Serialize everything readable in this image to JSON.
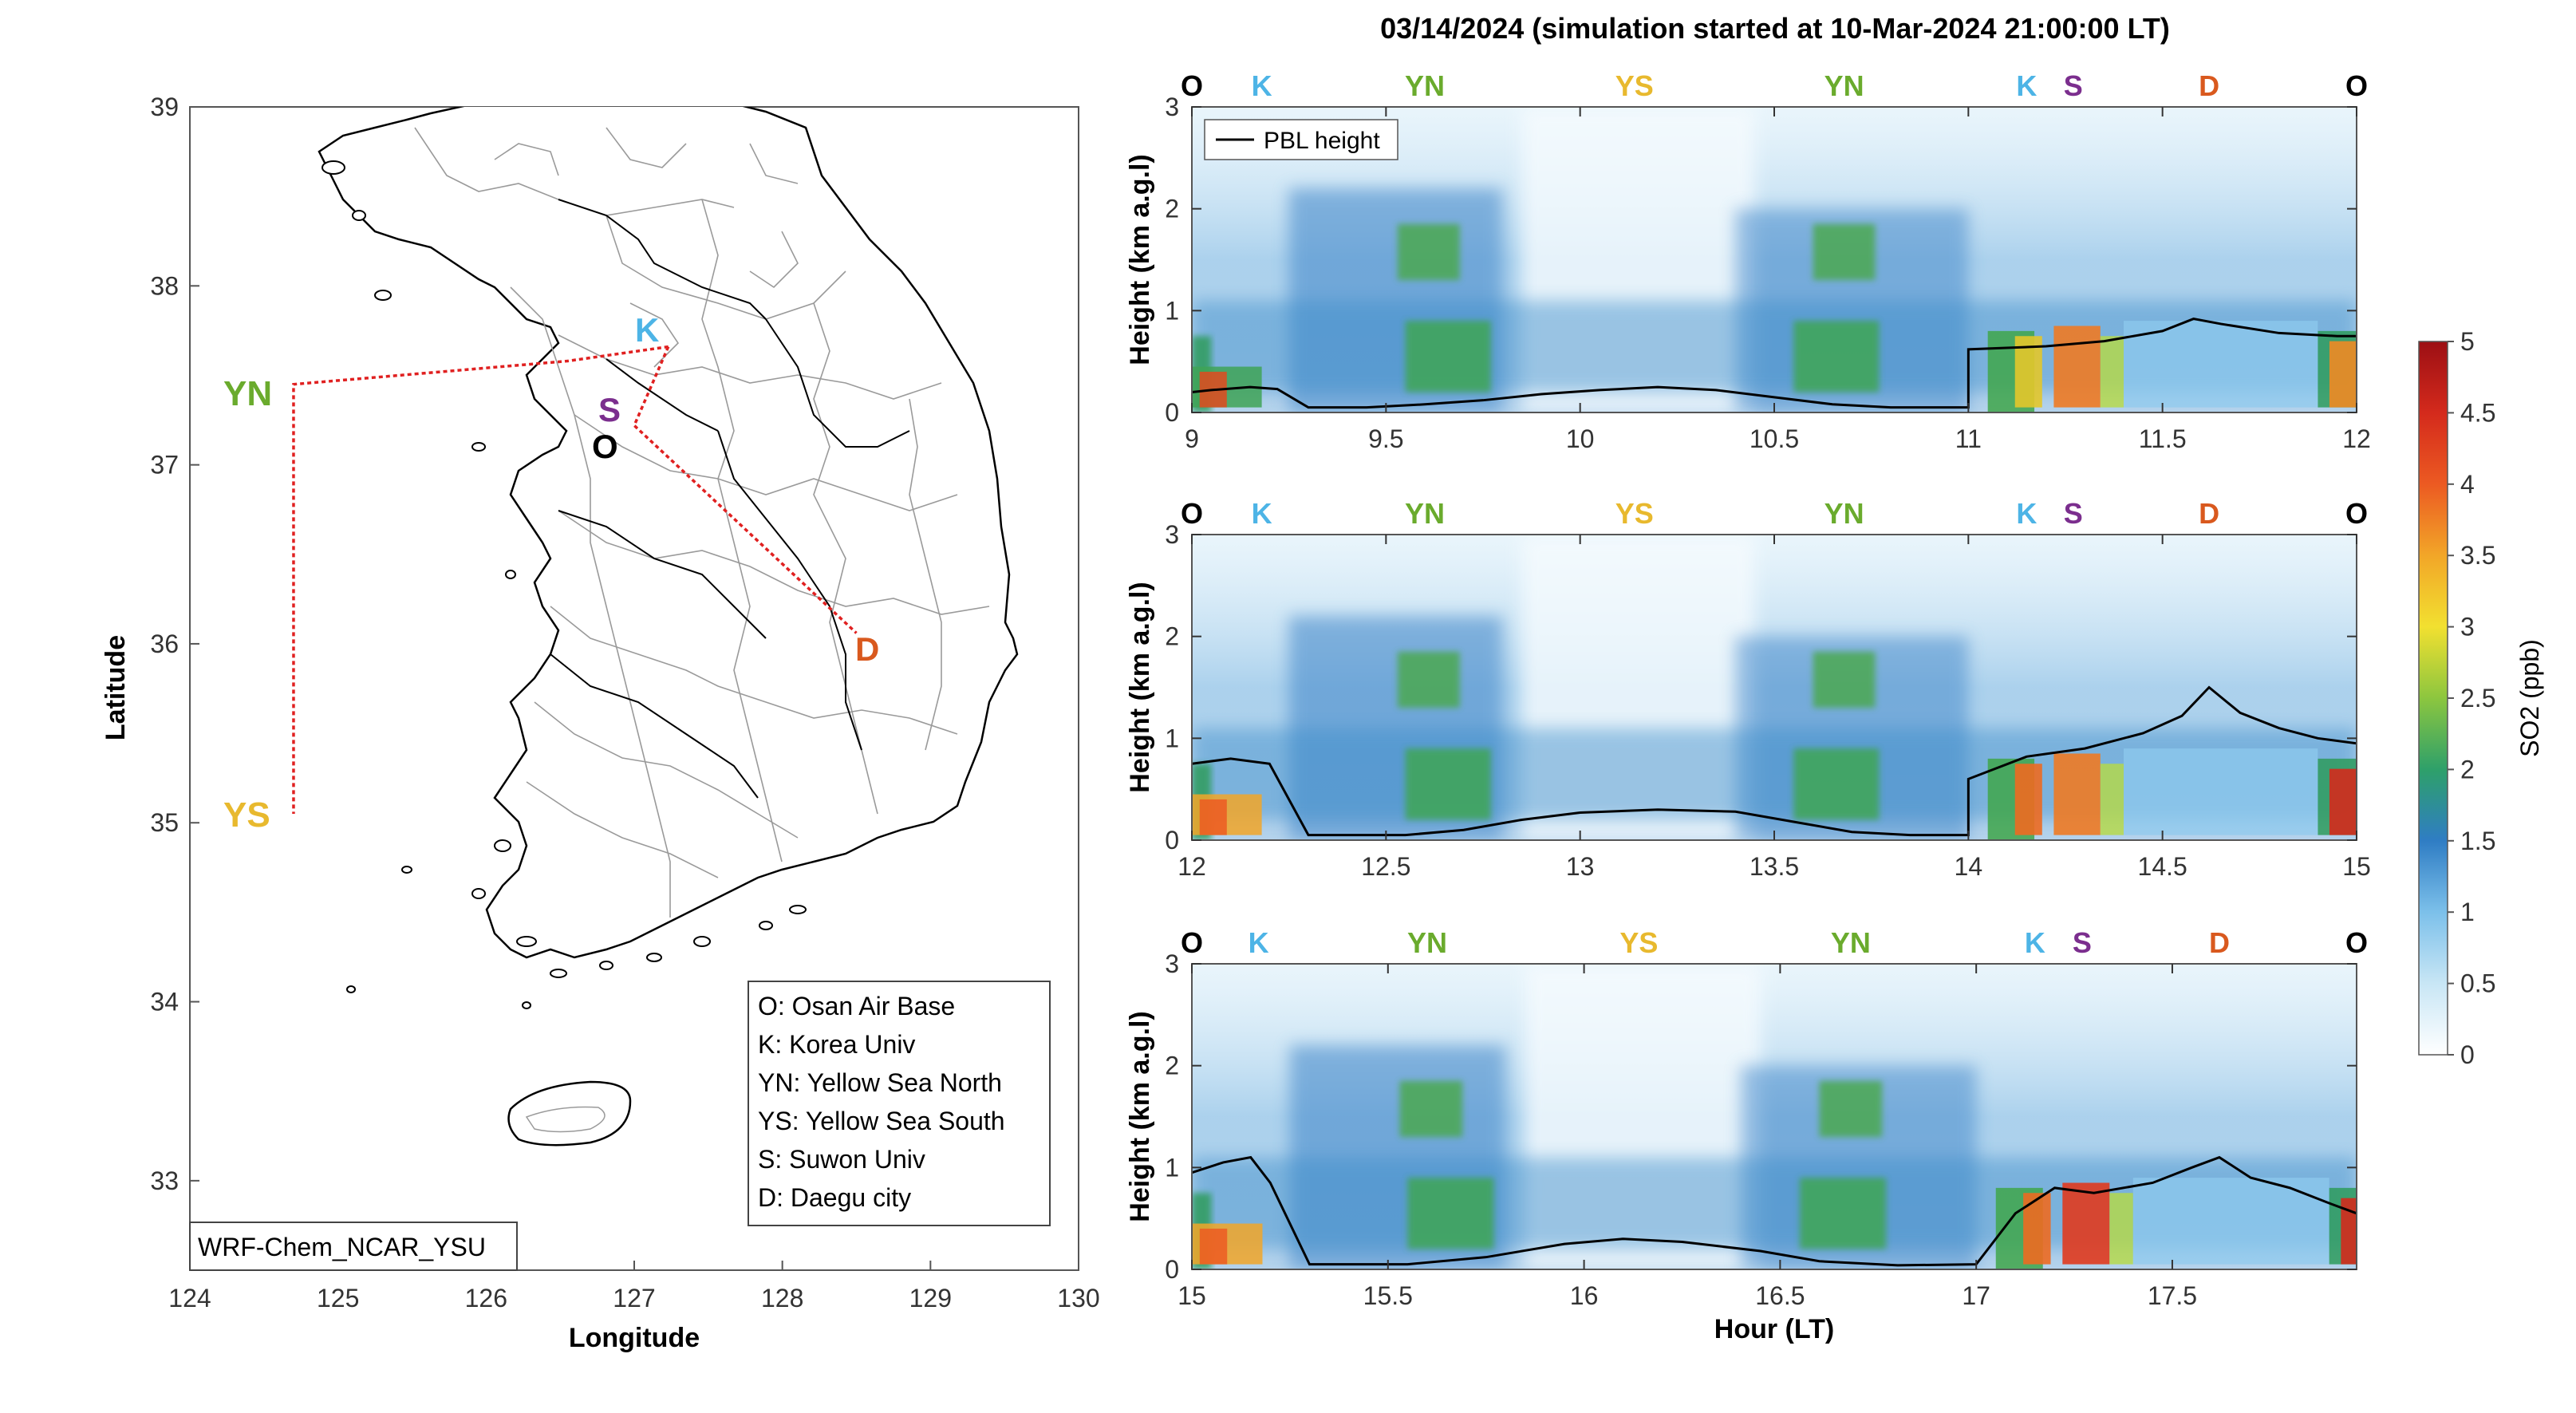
{
  "figure": {
    "title": "03/14/2024 (simulation started at 10-Mar-2024 21:00:00 LT)"
  },
  "colors": {
    "O": "#000000",
    "K": "#4db4e6",
    "YN": "#6aab2d",
    "YS": "#e8b92e",
    "S": "#7b2e8e",
    "D": "#d9591e",
    "track": "#e02020"
  },
  "chart_data": [
    {
      "type": "map",
      "xlabel": "Longitude",
      "ylabel": "Latitude",
      "xlim": [
        124,
        130
      ],
      "ylim": [
        32.5,
        39
      ],
      "xticks": [
        "124",
        "125",
        "126",
        "127",
        "128",
        "129",
        "130"
      ],
      "yticks": [
        "33",
        "34",
        "35",
        "36",
        "37",
        "38",
        "39"
      ],
      "model_label": "WRF-Chem_NCAR_YSU",
      "sites": [
        {
          "code": "O",
          "name": "Osan Air Base",
          "lon": 127.03,
          "lat": 37.09
        },
        {
          "code": "K",
          "name": "Korea Univ",
          "lon": 127.03,
          "lat": 37.59
        },
        {
          "code": "YN",
          "name": "Yellow Sea North",
          "lon": 124.7,
          "lat": 37.45
        },
        {
          "code": "YS",
          "name": "Yellow Sea South",
          "lon": 124.7,
          "lat": 35.05
        },
        {
          "code": "S",
          "name": "Suwon Univ",
          "lon": 126.98,
          "lat": 37.21
        },
        {
          "code": "D",
          "name": "Daegu city",
          "lon": 128.6,
          "lat": 35.87
        }
      ],
      "legend": [
        "O: Osan Air Base",
        "K: Korea Univ",
        "YN: Yellow Sea North",
        "YS: Yellow Sea South",
        "S: Suwon Univ",
        "D: Daegu city"
      ],
      "track": [
        [
          127.23,
          37.66
        ],
        [
          126.55,
          37.58
        ],
        [
          124.7,
          37.45
        ],
        [
          124.7,
          35.05
        ]
      ],
      "track2": [
        [
          127.23,
          37.66
        ],
        [
          127.0,
          37.22
        ],
        [
          128.5,
          36.06
        ]
      ]
    },
    {
      "type": "heatmap",
      "ylabel": "Height (km a.g.l)",
      "xlim": [
        9,
        12
      ],
      "ylim": [
        0,
        3
      ],
      "xticks": [
        "9",
        "9.5",
        "10",
        "10.5",
        "11",
        "11.5",
        "12"
      ],
      "yticks": [
        "0",
        "1",
        "2",
        "3"
      ],
      "sites_top": [
        {
          "code": "O",
          "x": 9.0
        },
        {
          "code": "K",
          "x": 9.18
        },
        {
          "code": "YN",
          "x": 9.6
        },
        {
          "code": "YS",
          "x": 10.14
        },
        {
          "code": "YN",
          "x": 10.68
        },
        {
          "code": "K",
          "x": 11.15
        },
        {
          "code": "S",
          "x": 11.27
        },
        {
          "code": "D",
          "x": 11.62
        },
        {
          "code": "O",
          "x": 12.0
        }
      ],
      "legend": "PBL height",
      "pbl": [
        [
          9.0,
          0.2
        ],
        [
          9.05,
          0.22
        ],
        [
          9.15,
          0.25
        ],
        [
          9.22,
          0.23
        ],
        [
          9.3,
          0.05
        ],
        [
          9.45,
          0.05
        ],
        [
          9.6,
          0.08
        ],
        [
          9.75,
          0.12
        ],
        [
          9.9,
          0.18
        ],
        [
          10.05,
          0.22
        ],
        [
          10.2,
          0.25
        ],
        [
          10.35,
          0.22
        ],
        [
          10.5,
          0.15
        ],
        [
          10.65,
          0.08
        ],
        [
          10.8,
          0.05
        ],
        [
          11.0,
          0.05
        ],
        [
          11.0,
          0.62
        ],
        [
          11.2,
          0.65
        ],
        [
          11.35,
          0.7
        ],
        [
          11.5,
          0.8
        ],
        [
          11.58,
          0.92
        ],
        [
          11.65,
          0.87
        ],
        [
          11.8,
          0.78
        ],
        [
          11.95,
          0.75
        ],
        [
          12.0,
          0.75
        ]
      ]
    },
    {
      "type": "heatmap",
      "ylabel": "Height (km a.g.l)",
      "xlim": [
        12,
        15
      ],
      "ylim": [
        0,
        3
      ],
      "xticks": [
        "12",
        "12.5",
        "13",
        "13.5",
        "14",
        "14.5",
        "15"
      ],
      "yticks": [
        "0",
        "1",
        "2",
        "3"
      ],
      "sites_top": [
        {
          "code": "O",
          "x": 12.0
        },
        {
          "code": "K",
          "x": 12.18
        },
        {
          "code": "YN",
          "x": 12.6
        },
        {
          "code": "YS",
          "x": 13.14
        },
        {
          "code": "YN",
          "x": 13.68
        },
        {
          "code": "K",
          "x": 14.15
        },
        {
          "code": "S",
          "x": 14.27
        },
        {
          "code": "D",
          "x": 14.62
        },
        {
          "code": "O",
          "x": 15.0
        }
      ],
      "pbl": [
        [
          12.0,
          0.75
        ],
        [
          12.1,
          0.8
        ],
        [
          12.2,
          0.75
        ],
        [
          12.3,
          0.05
        ],
        [
          12.55,
          0.05
        ],
        [
          12.7,
          0.1
        ],
        [
          12.85,
          0.2
        ],
        [
          13.0,
          0.27
        ],
        [
          13.2,
          0.3
        ],
        [
          13.4,
          0.28
        ],
        [
          13.55,
          0.18
        ],
        [
          13.7,
          0.08
        ],
        [
          13.85,
          0.05
        ],
        [
          14.0,
          0.05
        ],
        [
          14.0,
          0.6
        ],
        [
          14.15,
          0.82
        ],
        [
          14.3,
          0.9
        ],
        [
          14.45,
          1.05
        ],
        [
          14.55,
          1.22
        ],
        [
          14.62,
          1.5
        ],
        [
          14.7,
          1.25
        ],
        [
          14.8,
          1.1
        ],
        [
          14.9,
          1.0
        ],
        [
          15.0,
          0.95
        ]
      ]
    },
    {
      "type": "heatmap",
      "ylabel": "Height (km a.g.l)",
      "xlabel": "Hour (LT)",
      "xlim": [
        15,
        17.97
      ],
      "ylim": [
        0,
        3
      ],
      "xticks": [
        "15",
        "15.5",
        "16",
        "16.5",
        "17",
        "17.5"
      ],
      "yticks": [
        "0",
        "1",
        "2",
        "3"
      ],
      "sites_top": [
        {
          "code": "O",
          "x": 15.0
        },
        {
          "code": "K",
          "x": 15.17
        },
        {
          "code": "YN",
          "x": 15.6
        },
        {
          "code": "YS",
          "x": 16.14
        },
        {
          "code": "YN",
          "x": 16.68
        },
        {
          "code": "K",
          "x": 17.15
        },
        {
          "code": "S",
          "x": 17.27
        },
        {
          "code": "D",
          "x": 17.62
        },
        {
          "code": "O",
          "x": 17.97
        }
      ],
      "pbl": [
        [
          15.0,
          0.95
        ],
        [
          15.08,
          1.05
        ],
        [
          15.15,
          1.1
        ],
        [
          15.2,
          0.85
        ],
        [
          15.3,
          0.05
        ],
        [
          15.55,
          0.05
        ],
        [
          15.75,
          0.12
        ],
        [
          15.95,
          0.25
        ],
        [
          16.1,
          0.3
        ],
        [
          16.25,
          0.27
        ],
        [
          16.45,
          0.18
        ],
        [
          16.6,
          0.08
        ],
        [
          16.8,
          0.04
        ],
        [
          17.0,
          0.05
        ],
        [
          17.1,
          0.55
        ],
        [
          17.2,
          0.8
        ],
        [
          17.3,
          0.75
        ],
        [
          17.45,
          0.85
        ],
        [
          17.55,
          1.0
        ],
        [
          17.62,
          1.1
        ],
        [
          17.7,
          0.9
        ],
        [
          17.8,
          0.8
        ],
        [
          17.9,
          0.65
        ],
        [
          17.97,
          0.55
        ]
      ]
    },
    {
      "type": "colorbar",
      "label": "SO2 (ppb)",
      "range": [
        0,
        5
      ],
      "ticks": [
        "0",
        "0.5",
        "1",
        "1.5",
        "2",
        "2.5",
        "3",
        "3.5",
        "4",
        "4.5",
        "5"
      ]
    }
  ]
}
